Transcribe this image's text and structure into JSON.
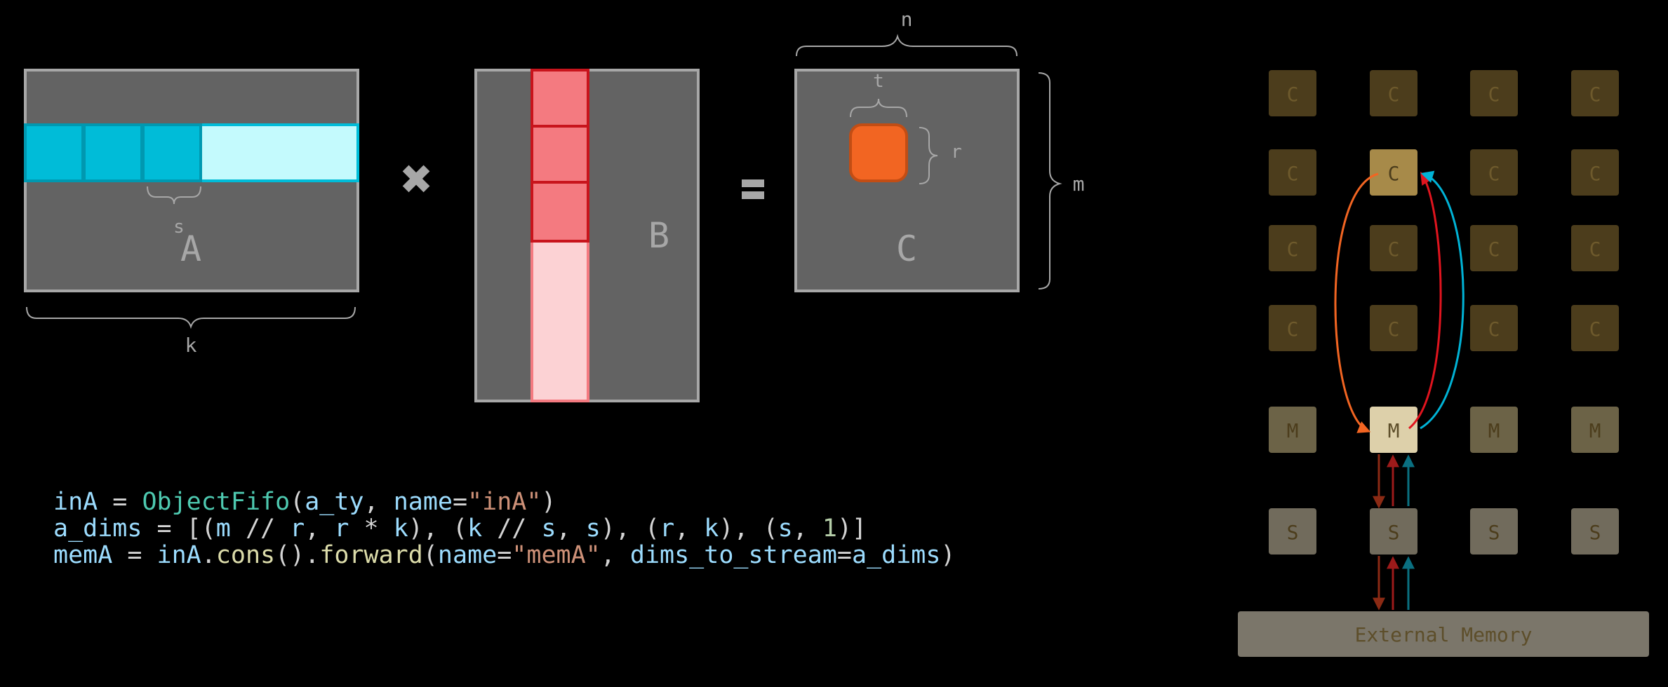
{
  "diagram": {
    "matrix_a": {
      "label": "A",
      "dim_bottom": "k",
      "dim_inner": "s"
    },
    "operator_times": "✖",
    "matrix_b": {
      "label": "B"
    },
    "operator_equals": "=",
    "matrix_c": {
      "label": "C",
      "dim_top": "n",
      "dim_right": "m",
      "tile_width": "t",
      "tile_height": "r"
    }
  },
  "colors": {
    "matrix_fill": "#636363",
    "matrix_border": "#a7a7a7",
    "a_tile": "#00bcd8",
    "a_row_light": "#c4fafd",
    "b_tile": "#f47a80",
    "b_col_light": "#fcd2d4",
    "b_border": "#c8141c",
    "c_tile": "#f26522",
    "compute_dim": "#4c3d1c",
    "compute_active": "#a78a49",
    "mem_dim": "#6c6347",
    "mem_active": "#ddd0aa",
    "shim_tile": "#716b5c",
    "ext_mem": "#7b766a",
    "arrow_orange": "#f26522",
    "arrow_red": "#e0141e",
    "arrow_cyan": "#00b3d6",
    "arrow_brown": "#8b2a14",
    "arrow_darkred": "#9c1a1a",
    "arrow_teal": "#0a6f80"
  },
  "grid": {
    "compute_label": "C",
    "mem_label": "M",
    "shim_label": "S",
    "external_memory": "External Memory"
  },
  "code": [
    [
      [
        "t-var",
        "inA"
      ],
      [
        "t-op",
        " = "
      ],
      [
        "t-cls",
        "ObjectFifo"
      ],
      [
        "t-op",
        "("
      ],
      [
        "t-var",
        "a_ty"
      ],
      [
        "t-op",
        ", "
      ],
      [
        "t-var",
        "name"
      ],
      [
        "t-op",
        "="
      ],
      [
        "t-str",
        "\"inA\""
      ],
      [
        "t-op",
        ")"
      ]
    ],
    [
      [
        "t-var",
        "a_dims"
      ],
      [
        "t-op",
        " = [("
      ],
      [
        "t-var",
        "m"
      ],
      [
        "t-op",
        " // "
      ],
      [
        "t-var",
        "r"
      ],
      [
        "t-op",
        ", "
      ],
      [
        "t-var",
        "r"
      ],
      [
        "t-op",
        " * "
      ],
      [
        "t-var",
        "k"
      ],
      [
        "t-op",
        "), ("
      ],
      [
        "t-var",
        "k"
      ],
      [
        "t-op",
        " // "
      ],
      [
        "t-var",
        "s"
      ],
      [
        "t-op",
        ", "
      ],
      [
        "t-var",
        "s"
      ],
      [
        "t-op",
        "), ("
      ],
      [
        "t-var",
        "r"
      ],
      [
        "t-op",
        ", "
      ],
      [
        "t-var",
        "k"
      ],
      [
        "t-op",
        "), ("
      ],
      [
        "t-var",
        "s"
      ],
      [
        "t-op",
        ", "
      ],
      [
        "t-num",
        "1"
      ],
      [
        "t-op",
        ")]"
      ]
    ],
    [
      [
        "t-var",
        "memA"
      ],
      [
        "t-op",
        " = "
      ],
      [
        "t-var",
        "inA"
      ],
      [
        "t-op",
        "."
      ],
      [
        "t-fn",
        "cons"
      ],
      [
        "t-op",
        "()."
      ],
      [
        "t-fn",
        "forward"
      ],
      [
        "t-op",
        "("
      ],
      [
        "t-var",
        "name"
      ],
      [
        "t-op",
        "="
      ],
      [
        "t-str",
        "\"memA\""
      ],
      [
        "t-op",
        ", "
      ],
      [
        "t-var",
        "dims_to_stream"
      ],
      [
        "t-op",
        "="
      ],
      [
        "t-var",
        "a_dims"
      ],
      [
        "t-op",
        ")"
      ]
    ]
  ]
}
